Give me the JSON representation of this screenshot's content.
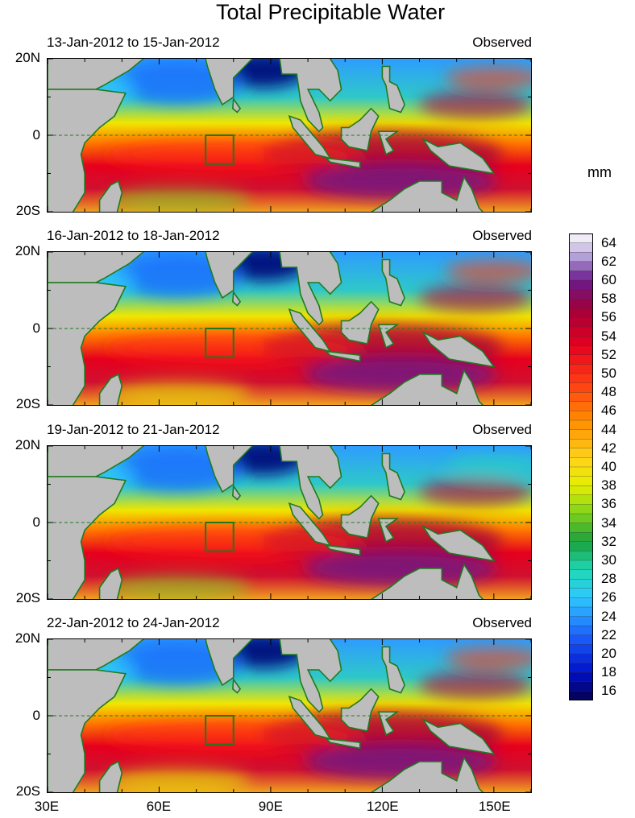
{
  "title": "Total Precipitable Water",
  "unit_label": "mm",
  "status_label": "Observed",
  "panels": [
    {
      "date_range": "13-Jan-2012 to 15-Jan-2012"
    },
    {
      "date_range": "16-Jan-2012 to 18-Jan-2012"
    },
    {
      "date_range": "19-Jan-2012 to 21-Jan-2012"
    },
    {
      "date_range": "22-Jan-2012 to 24-Jan-2012"
    }
  ],
  "lat_labels": [
    "20N",
    "0",
    "20S"
  ],
  "lon_labels": [
    "30E",
    "60E",
    "90E",
    "120E",
    "150E"
  ],
  "colorbar": {
    "labels": [
      "64",
      "62",
      "60",
      "58",
      "56",
      "54",
      "52",
      "50",
      "48",
      "46",
      "44",
      "42",
      "40",
      "38",
      "36",
      "34",
      "32",
      "30",
      "28",
      "26",
      "24",
      "22",
      "20",
      "18",
      "16"
    ],
    "min": 15,
    "max": 65
  },
  "map_extent": {
    "lon_min": 30,
    "lon_max": 160,
    "lat_min": -20,
    "lat_max": 20
  }
}
